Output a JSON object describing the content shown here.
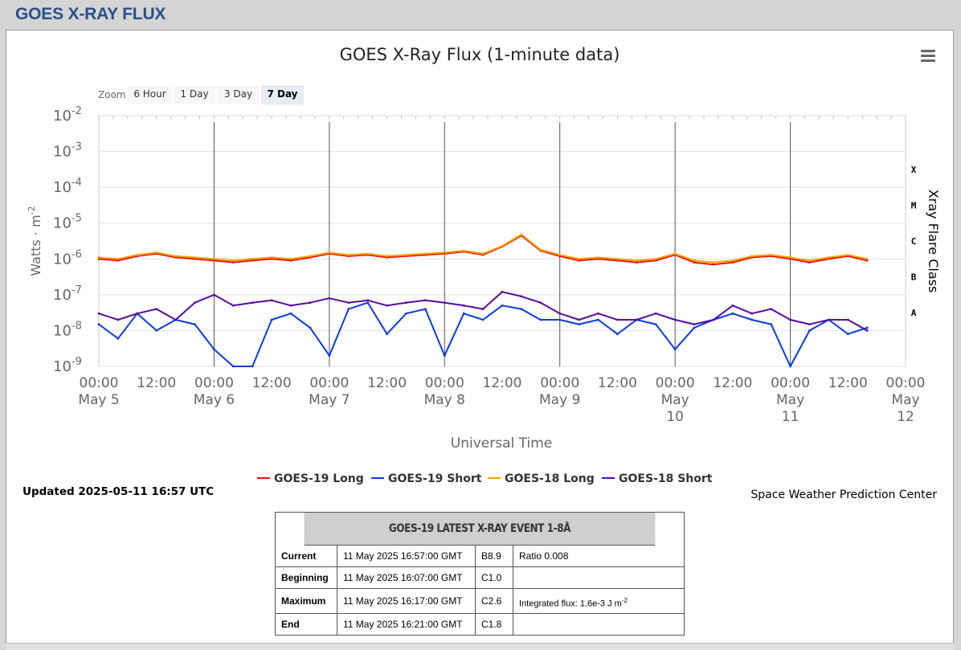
{
  "header": {
    "title": "GOES X-RAY FLUX"
  },
  "zoom": {
    "label": "Zoom",
    "buttons": [
      "6 Hour",
      "1 Day",
      "3 Day",
      "7 Day"
    ],
    "active": "7 Day"
  },
  "updated": "Updated 2025-05-11 16:57 UTC",
  "credit": "Space Weather Prediction Center",
  "colors": {
    "goes19_long": "#e8140a",
    "goes19_short": "#0a3cdc",
    "goes18_long": "#f7a000",
    "goes18_short": "#5a0aa0",
    "header_text": "#28508a"
  },
  "icons": {
    "menu": "hamburger-menu-icon"
  },
  "chart_data": {
    "type": "line",
    "title": "GOES X-Ray Flux (1-minute data)",
    "xlabel": "Universal Time",
    "ylabel": "Watts · m",
    "ylabel_sup": "-2",
    "right_axis_label": "Xray Flare Class",
    "y_scale": "log",
    "ylim_exponent": [
      -9,
      -2
    ],
    "y_ticks": [
      {
        "base": "10",
        "exp": "-2"
      },
      {
        "base": "10",
        "exp": "-3"
      },
      {
        "base": "10",
        "exp": "-4"
      },
      {
        "base": "10",
        "exp": "-5"
      },
      {
        "base": "10",
        "exp": "-6"
      },
      {
        "base": "10",
        "exp": "-7"
      },
      {
        "base": "10",
        "exp": "-8"
      },
      {
        "base": "10",
        "exp": "-9"
      }
    ],
    "flare_classes": [
      {
        "label": "X",
        "exp": -3.5
      },
      {
        "label": "M",
        "exp": -4.5
      },
      {
        "label": "C",
        "exp": -5.5
      },
      {
        "label": "B",
        "exp": -6.5
      },
      {
        "label": "A",
        "exp": -7.5
      }
    ],
    "x_range_days": [
      0,
      7
    ],
    "x_ticks": [
      {
        "time": "00:00",
        "date": "May 5"
      },
      {
        "time": "12:00",
        "date": ""
      },
      {
        "time": "00:00",
        "date": "May 6"
      },
      {
        "time": "12:00",
        "date": ""
      },
      {
        "time": "00:00",
        "date": "May 7"
      },
      {
        "time": "12:00",
        "date": ""
      },
      {
        "time": "00:00",
        "date": "May 8"
      },
      {
        "time": "12:00",
        "date": ""
      },
      {
        "time": "00:00",
        "date": "May 9"
      },
      {
        "time": "12:00",
        "date": ""
      },
      {
        "time": "00:00",
        "date": "May 10"
      },
      {
        "time": "12:00",
        "date": ""
      },
      {
        "time": "00:00",
        "date": "May 11"
      },
      {
        "time": "12:00",
        "date": ""
      },
      {
        "time": "00:00",
        "date": "May 12"
      }
    ],
    "x": [
      "2025-05-05 00:00",
      "2025-05-05 04:00",
      "2025-05-05 08:00",
      "2025-05-05 12:00",
      "2025-05-05 16:00",
      "2025-05-05 20:00",
      "2025-05-06 00:00",
      "2025-05-06 04:00",
      "2025-05-06 08:00",
      "2025-05-06 12:00",
      "2025-05-06 16:00",
      "2025-05-06 20:00",
      "2025-05-07 00:00",
      "2025-05-07 04:00",
      "2025-05-07 08:00",
      "2025-05-07 12:00",
      "2025-05-07 16:00",
      "2025-05-07 20:00",
      "2025-05-08 00:00",
      "2025-05-08 04:00",
      "2025-05-08 08:00",
      "2025-05-08 12:00",
      "2025-05-08 16:00",
      "2025-05-08 20:00",
      "2025-05-09 00:00",
      "2025-05-09 04:00",
      "2025-05-09 08:00",
      "2025-05-09 12:00",
      "2025-05-09 16:00",
      "2025-05-09 20:00",
      "2025-05-10 00:00",
      "2025-05-10 04:00",
      "2025-05-10 08:00",
      "2025-05-10 12:00",
      "2025-05-10 16:00",
      "2025-05-10 20:00",
      "2025-05-11 00:00",
      "2025-05-11 04:00",
      "2025-05-11 08:00",
      "2025-05-11 12:00",
      "2025-05-11 16:00"
    ],
    "series": [
      {
        "name": "GOES-19 Long",
        "color": "#e8140a",
        "values": [
          1e-06,
          9e-07,
          1.2e-06,
          1.4e-06,
          1.1e-06,
          1e-06,
          9e-07,
          8e-07,
          9e-07,
          1e-06,
          9e-07,
          1.1e-06,
          1.4e-06,
          1.2e-06,
          1.3e-06,
          1.1e-06,
          1.2e-06,
          1.3e-06,
          1.4e-06,
          1.6e-06,
          1.3e-06,
          2.2e-06,
          4.5e-06,
          1.7e-06,
          1.2e-06,
          9e-07,
          1e-06,
          9e-07,
          8e-07,
          9e-07,
          1.3e-06,
          8e-07,
          7e-07,
          8e-07,
          1.1e-06,
          1.2e-06,
          1e-06,
          8e-07,
          1e-06,
          1.2e-06,
          9e-07
        ]
      },
      {
        "name": "GOES-19 Short",
        "color": "#0a3cdc",
        "values": [
          1.5e-08,
          6e-09,
          3e-08,
          1e-08,
          2e-08,
          1.5e-08,
          3e-09,
          1e-09,
          1e-09,
          2e-08,
          3e-08,
          1.2e-08,
          2e-09,
          4e-08,
          6e-08,
          8e-09,
          3e-08,
          4e-08,
          2e-09,
          3e-08,
          2e-08,
          5e-08,
          4e-08,
          2e-08,
          2e-08,
          1.5e-08,
          2e-08,
          8e-09,
          2e-08,
          1.5e-08,
          3e-09,
          1.2e-08,
          2e-08,
          3e-08,
          2e-08,
          1.5e-08,
          1e-09,
          1e-08,
          2e-08,
          8e-09,
          1.2e-08
        ]
      },
      {
        "name": "GOES-18 Long",
        "color": "#f7a000",
        "values": [
          1.1e-06,
          1e-06,
          1.3e-06,
          1.5e-06,
          1.2e-06,
          1.1e-06,
          1e-06,
          9e-07,
          1e-06,
          1.1e-06,
          1e-06,
          1.2e-06,
          1.5e-06,
          1.3e-06,
          1.4e-06,
          1.2e-06,
          1.3e-06,
          1.4e-06,
          1.5e-06,
          1.7e-06,
          1.4e-06,
          2.3e-06,
          4.8e-06,
          1.8e-06,
          1.3e-06,
          1e-06,
          1.1e-06,
          1e-06,
          9e-07,
          1e-06,
          1.4e-06,
          9e-07,
          8e-07,
          9e-07,
          1.2e-06,
          1.3e-06,
          1.1e-06,
          9e-07,
          1.1e-06,
          1.3e-06,
          1e-06
        ]
      },
      {
        "name": "GOES-18 Short",
        "color": "#5a0aa0",
        "values": [
          3e-08,
          2e-08,
          3e-08,
          4e-08,
          2e-08,
          6e-08,
          1e-07,
          5e-08,
          6e-08,
          7e-08,
          5e-08,
          6e-08,
          8e-08,
          6e-08,
          7e-08,
          5e-08,
          6e-08,
          7e-08,
          6e-08,
          5e-08,
          4e-08,
          1.2e-07,
          9e-08,
          6e-08,
          3e-08,
          2e-08,
          3e-08,
          2e-08,
          2e-08,
          3e-08,
          2e-08,
          1.5e-08,
          2e-08,
          5e-08,
          3e-08,
          4e-08,
          2e-08,
          1.5e-08,
          2e-08,
          2e-08,
          1e-08
        ]
      }
    ]
  },
  "event": {
    "title": "GOES-19 LATEST X-RAY EVENT 1-8Å",
    "rows": [
      {
        "label": "Current",
        "time": "11 May 2025 16:57:00 GMT",
        "class": "B8.9",
        "extra": "Ratio 0.008",
        "extra_sup": ""
      },
      {
        "label": "Beginning",
        "time": "11 May 2025 16:07:00 GMT",
        "class": "C1.0",
        "extra": "",
        "extra_sup": ""
      },
      {
        "label": "Maximum",
        "time": "11 May 2025 16:17:00 GMT",
        "class": "C2.6",
        "extra": "Integrated flux: 1.6e-3 J m",
        "extra_sup": "-2"
      },
      {
        "label": "End",
        "time": "11 May 2025 16:21:00 GMT",
        "class": "C1.8",
        "extra": "",
        "extra_sup": ""
      }
    ]
  }
}
